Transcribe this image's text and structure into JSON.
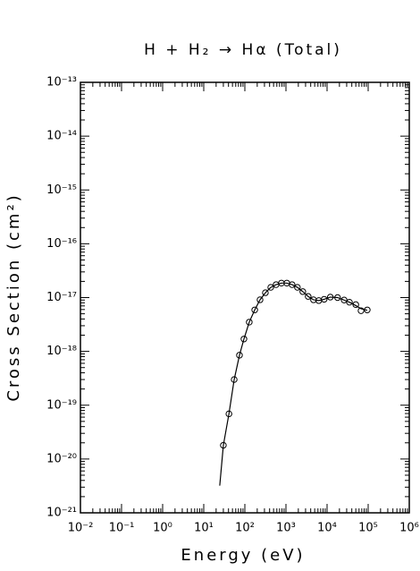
{
  "chart_data": {
    "type": "line",
    "title": "H + H₂ → Hα (Total)",
    "xlabel": "Energy (eV)",
    "ylabel": "Cross Section (cm²)",
    "xscale": "log",
    "yscale": "log",
    "xlim": [
      0.01,
      1000000
    ],
    "ylim": [
      1e-21,
      1e-13
    ],
    "xticks": [
      {
        "value": 0.01,
        "label": "10⁻²"
      },
      {
        "value": 0.1,
        "label": "10⁻¹"
      },
      {
        "value": 1,
        "label": "10⁰"
      },
      {
        "value": 10,
        "label": "10¹"
      },
      {
        "value": 100,
        "label": "10²"
      },
      {
        "value": 1000,
        "label": "10³"
      },
      {
        "value": 10000,
        "label": "10⁴"
      },
      {
        "value": 100000,
        "label": "10⁵"
      },
      {
        "value": 1000000,
        "label": "10⁶"
      }
    ],
    "yticks": [
      {
        "value": 1e-21,
        "label": "10⁻²¹"
      },
      {
        "value": 1e-20,
        "label": "10⁻²⁰"
      },
      {
        "value": 1e-19,
        "label": "10⁻¹⁹"
      },
      {
        "value": 1e-18,
        "label": "10⁻¹⁸"
      },
      {
        "value": 1e-17,
        "label": "10⁻¹⁷"
      },
      {
        "value": 1e-16,
        "label": "10⁻¹⁶"
      },
      {
        "value": 1e-15,
        "label": "10⁻¹⁵"
      },
      {
        "value": 1e-14,
        "label": "10⁻¹⁴"
      },
      {
        "value": 1e-13,
        "label": "10⁻¹³"
      }
    ],
    "color": "#000000",
    "series": [
      {
        "style": "markers",
        "marker": "circle",
        "x": [
          30,
          41,
          55,
          74,
          95,
          128,
          174,
          234,
          316,
          427,
          575,
          776,
          1050,
          1410,
          1900,
          2570,
          3470,
          4680,
          6300,
          8500,
          12000,
          18000,
          26000,
          35000,
          50000,
          67000,
          95000
        ],
        "values": [
          1.8e-20,
          6.9e-20,
          3e-19,
          8.5e-19,
          1.7e-18,
          3.5e-18,
          5.9e-18,
          9.1e-18,
          1.23e-17,
          1.55e-17,
          1.74e-17,
          1.86e-17,
          1.86e-17,
          1.74e-17,
          1.55e-17,
          1.29e-17,
          1.05e-17,
          9.1e-18,
          8.8e-18,
          9.3e-18,
          1.02e-17,
          1e-17,
          9e-18,
          8.2e-18,
          7.4e-18,
          5.7e-18,
          5.9e-18
        ]
      },
      {
        "style": "line",
        "x": [
          24.5,
          30,
          41,
          55,
          74,
          95,
          128,
          174,
          234,
          316,
          427,
          575,
          776,
          1050,
          1410,
          1900,
          2570,
          3470,
          4680,
          6300,
          8500,
          12000,
          18000,
          26000,
          35000,
          50000,
          67000,
          95000
        ],
        "values": [
          3.2e-21,
          1.8e-20,
          6.9e-20,
          3e-19,
          8.5e-19,
          1.7e-18,
          3.5e-18,
          5.9e-18,
          9.1e-18,
          1.23e-17,
          1.55e-17,
          1.74e-17,
          1.86e-17,
          1.86e-17,
          1.74e-17,
          1.55e-17,
          1.29e-17,
          1.05e-17,
          9.1e-18,
          8.8e-18,
          9.3e-18,
          1.02e-17,
          1e-17,
          9e-18,
          8.2e-18,
          7.1e-18,
          6.2e-18,
          5.8e-18
        ]
      }
    ]
  }
}
